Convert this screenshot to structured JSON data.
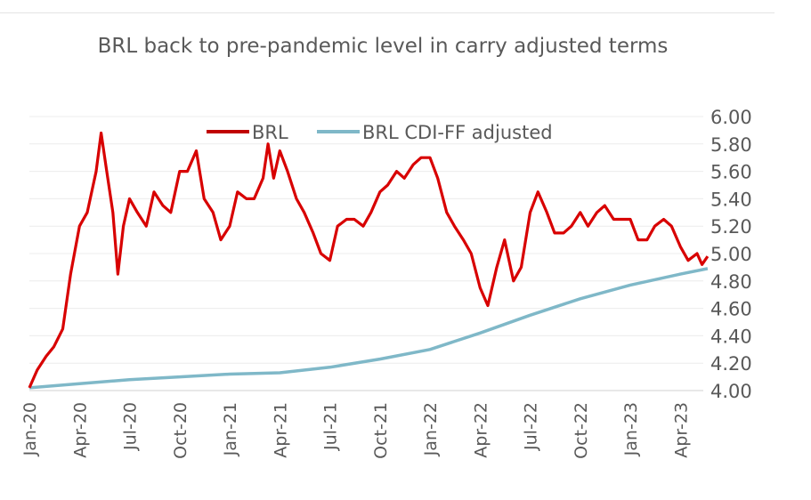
{
  "chart_data": {
    "type": "line",
    "title": "BRL back to pre-pandemic level in carry adjusted terms",
    "xlabel": "",
    "ylabel": "",
    "ylim": [
      4.0,
      6.0
    ],
    "y_ticks": [
      "4.00",
      "4.20",
      "4.40",
      "4.60",
      "4.80",
      "5.00",
      "5.20",
      "5.40",
      "5.60",
      "5.80",
      "6.00"
    ],
    "y_axis_position": "right",
    "x_ticks": [
      {
        "label": "Jan-20",
        "date": "2020-01-01"
      },
      {
        "label": "Apr-20",
        "date": "2020-04-01"
      },
      {
        "label": "Jul-20",
        "date": "2020-07-01"
      },
      {
        "label": "Oct-20",
        "date": "2020-10-01"
      },
      {
        "label": "Jan-21",
        "date": "2021-01-01"
      },
      {
        "label": "Apr-21",
        "date": "2021-04-01"
      },
      {
        "label": "Jul-21",
        "date": "2021-07-01"
      },
      {
        "label": "Oct-21",
        "date": "2021-10-01"
      },
      {
        "label": "Jan-22",
        "date": "2022-01-01"
      },
      {
        "label": "Apr-22",
        "date": "2022-04-01"
      },
      {
        "label": "Jul-22",
        "date": "2022-07-01"
      },
      {
        "label": "Oct-22",
        "date": "2022-10-01"
      },
      {
        "label": "Jan-23",
        "date": "2023-01-01"
      },
      {
        "label": "Apr-23",
        "date": "2023-04-01"
      }
    ],
    "grid": true,
    "legend_position": "top-center",
    "series": [
      {
        "name": "BRL",
        "color": "#e00000",
        "points": [
          [
            "2020-01-01",
            4.02
          ],
          [
            "2020-01-15",
            4.15
          ],
          [
            "2020-02-01",
            4.25
          ],
          [
            "2020-02-15",
            4.32
          ],
          [
            "2020-03-01",
            4.45
          ],
          [
            "2020-03-15",
            4.85
          ],
          [
            "2020-04-01",
            5.2
          ],
          [
            "2020-04-15",
            5.3
          ],
          [
            "2020-05-01",
            5.6
          ],
          [
            "2020-05-10",
            5.88
          ],
          [
            "2020-05-20",
            5.6
          ],
          [
            "2020-06-01",
            5.3
          ],
          [
            "2020-06-10",
            4.85
          ],
          [
            "2020-06-20",
            5.2
          ],
          [
            "2020-07-01",
            5.4
          ],
          [
            "2020-07-15",
            5.3
          ],
          [
            "2020-08-01",
            5.2
          ],
          [
            "2020-08-15",
            5.45
          ],
          [
            "2020-09-01",
            5.35
          ],
          [
            "2020-09-15",
            5.3
          ],
          [
            "2020-10-01",
            5.6
          ],
          [
            "2020-10-15",
            5.6
          ],
          [
            "2020-11-01",
            5.75
          ],
          [
            "2020-11-15",
            5.4
          ],
          [
            "2020-12-01",
            5.3
          ],
          [
            "2020-12-15",
            5.1
          ],
          [
            "2021-01-01",
            5.2
          ],
          [
            "2021-01-15",
            5.45
          ],
          [
            "2021-02-01",
            5.4
          ],
          [
            "2021-02-15",
            5.4
          ],
          [
            "2021-03-01",
            5.55
          ],
          [
            "2021-03-10",
            5.8
          ],
          [
            "2021-03-20",
            5.55
          ],
          [
            "2021-04-01",
            5.75
          ],
          [
            "2021-04-15",
            5.6
          ],
          [
            "2021-05-01",
            5.4
          ],
          [
            "2021-05-15",
            5.3
          ],
          [
            "2021-06-01",
            5.15
          ],
          [
            "2021-06-15",
            5.0
          ],
          [
            "2021-07-01",
            4.95
          ],
          [
            "2021-07-15",
            5.2
          ],
          [
            "2021-08-01",
            5.25
          ],
          [
            "2021-08-15",
            5.25
          ],
          [
            "2021-09-01",
            5.2
          ],
          [
            "2021-09-15",
            5.3
          ],
          [
            "2021-10-01",
            5.45
          ],
          [
            "2021-10-15",
            5.5
          ],
          [
            "2021-11-01",
            5.6
          ],
          [
            "2021-11-15",
            5.55
          ],
          [
            "2021-12-01",
            5.65
          ],
          [
            "2021-12-15",
            5.7
          ],
          [
            "2022-01-01",
            5.7
          ],
          [
            "2022-01-15",
            5.55
          ],
          [
            "2022-02-01",
            5.3
          ],
          [
            "2022-02-15",
            5.2
          ],
          [
            "2022-03-01",
            5.1
          ],
          [
            "2022-03-15",
            5.0
          ],
          [
            "2022-04-01",
            4.75
          ],
          [
            "2022-04-15",
            4.62
          ],
          [
            "2022-05-01",
            4.9
          ],
          [
            "2022-05-15",
            5.1
          ],
          [
            "2022-06-01",
            4.8
          ],
          [
            "2022-06-15",
            4.9
          ],
          [
            "2022-07-01",
            5.3
          ],
          [
            "2022-07-15",
            5.45
          ],
          [
            "2022-08-01",
            5.3
          ],
          [
            "2022-08-15",
            5.15
          ],
          [
            "2022-09-01",
            5.15
          ],
          [
            "2022-09-15",
            5.2
          ],
          [
            "2022-10-01",
            5.3
          ],
          [
            "2022-10-15",
            5.2
          ],
          [
            "2022-11-01",
            5.3
          ],
          [
            "2022-11-15",
            5.35
          ],
          [
            "2022-12-01",
            5.25
          ],
          [
            "2022-12-15",
            5.25
          ],
          [
            "2023-01-01",
            5.25
          ],
          [
            "2023-01-15",
            5.1
          ],
          [
            "2023-02-01",
            5.1
          ],
          [
            "2023-02-15",
            5.2
          ],
          [
            "2023-03-01",
            5.25
          ],
          [
            "2023-03-15",
            5.2
          ],
          [
            "2023-04-01",
            5.05
          ],
          [
            "2023-04-15",
            4.95
          ],
          [
            "2023-05-01",
            5.0
          ],
          [
            "2023-05-10",
            4.92
          ],
          [
            "2023-05-20",
            4.98
          ]
        ]
      },
      {
        "name": "BRL CDI-FF adjusted",
        "color": "#7fb8c8",
        "points": [
          [
            "2020-01-01",
            4.02
          ],
          [
            "2020-04-01",
            4.05
          ],
          [
            "2020-07-01",
            4.08
          ],
          [
            "2020-10-01",
            4.1
          ],
          [
            "2021-01-01",
            4.12
          ],
          [
            "2021-04-01",
            4.13
          ],
          [
            "2021-07-01",
            4.17
          ],
          [
            "2021-10-01",
            4.23
          ],
          [
            "2022-01-01",
            4.3
          ],
          [
            "2022-04-01",
            4.42
          ],
          [
            "2022-07-01",
            4.55
          ],
          [
            "2022-10-01",
            4.67
          ],
          [
            "2023-01-01",
            4.77
          ],
          [
            "2023-04-01",
            4.85
          ],
          [
            "2023-05-20",
            4.89
          ]
        ]
      }
    ]
  }
}
